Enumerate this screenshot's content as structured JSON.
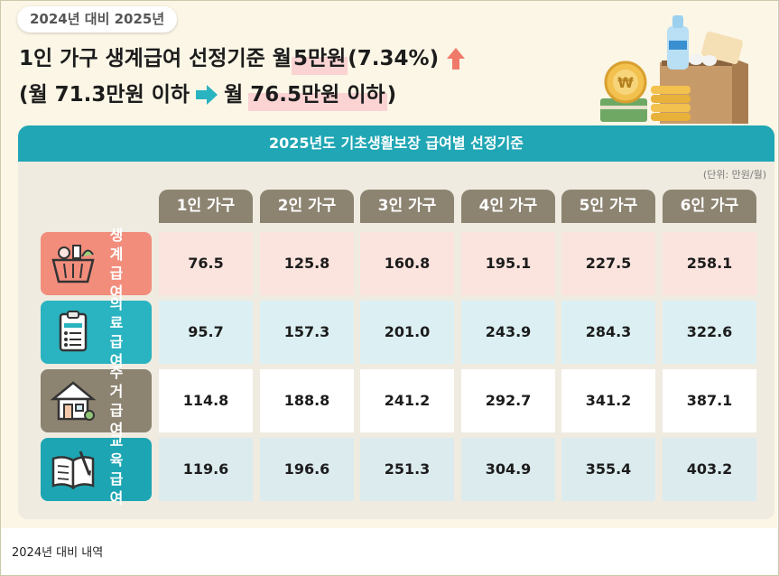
{
  "comparison_badge": "2024년 대비 2025년",
  "headline": {
    "line1_prefix": "1인 가구 생계급여 선정기준 월 ",
    "line1_highlight": "5만원",
    "line1_suffix": "(7.34%)",
    "line2_from": "(월 71.3만원 이하",
    "line2_to_prefix": "월 ",
    "line2_to_highlight": "76.5만원 이하",
    "line2_close": ")"
  },
  "table": {
    "title": "2025년도 기초생활보장 급여별 선정기준",
    "unit": "(단위: 만원/월)",
    "columns": [
      "1인 가구",
      "2인 가구",
      "3인 가구",
      "4인 가구",
      "5인 가구",
      "6인 가구"
    ],
    "rows": [
      {
        "label_top": "생계",
        "label_bottom": "급여",
        "icon": "grocery-basket-icon",
        "color": "#f28d7c",
        "cell_bg": "#fbe3de",
        "values": [
          "76.5",
          "125.8",
          "160.8",
          "195.1",
          "227.5",
          "258.1"
        ]
      },
      {
        "label_top": "의료",
        "label_bottom": "급여",
        "icon": "medical-chart-icon",
        "color": "#2ab3c0",
        "cell_bg": "#dcf0f3",
        "values": [
          "95.7",
          "157.3",
          "201.0",
          "243.9",
          "284.3",
          "322.6"
        ]
      },
      {
        "label_top": "주거",
        "label_bottom": "급여",
        "icon": "house-icon",
        "color": "#8c8371",
        "cell_bg": "#ffffff",
        "values": [
          "114.8",
          "188.8",
          "241.2",
          "292.7",
          "341.2",
          "387.1"
        ]
      },
      {
        "label_top": "교육",
        "label_bottom": "급여",
        "icon": "open-book-icon",
        "color": "#1da5b3",
        "cell_bg": "#dcebee",
        "values": [
          "119.6",
          "196.6",
          "251.3",
          "304.9",
          "355.4",
          "403.2"
        ]
      }
    ]
  },
  "colors": {
    "accent_teal": "#20a6b4",
    "header_brown": "#8c8371",
    "increase_red": "#f07a6a",
    "highlight_pink": "#fbd3d3"
  },
  "caption": "2024년 대비 내역"
}
